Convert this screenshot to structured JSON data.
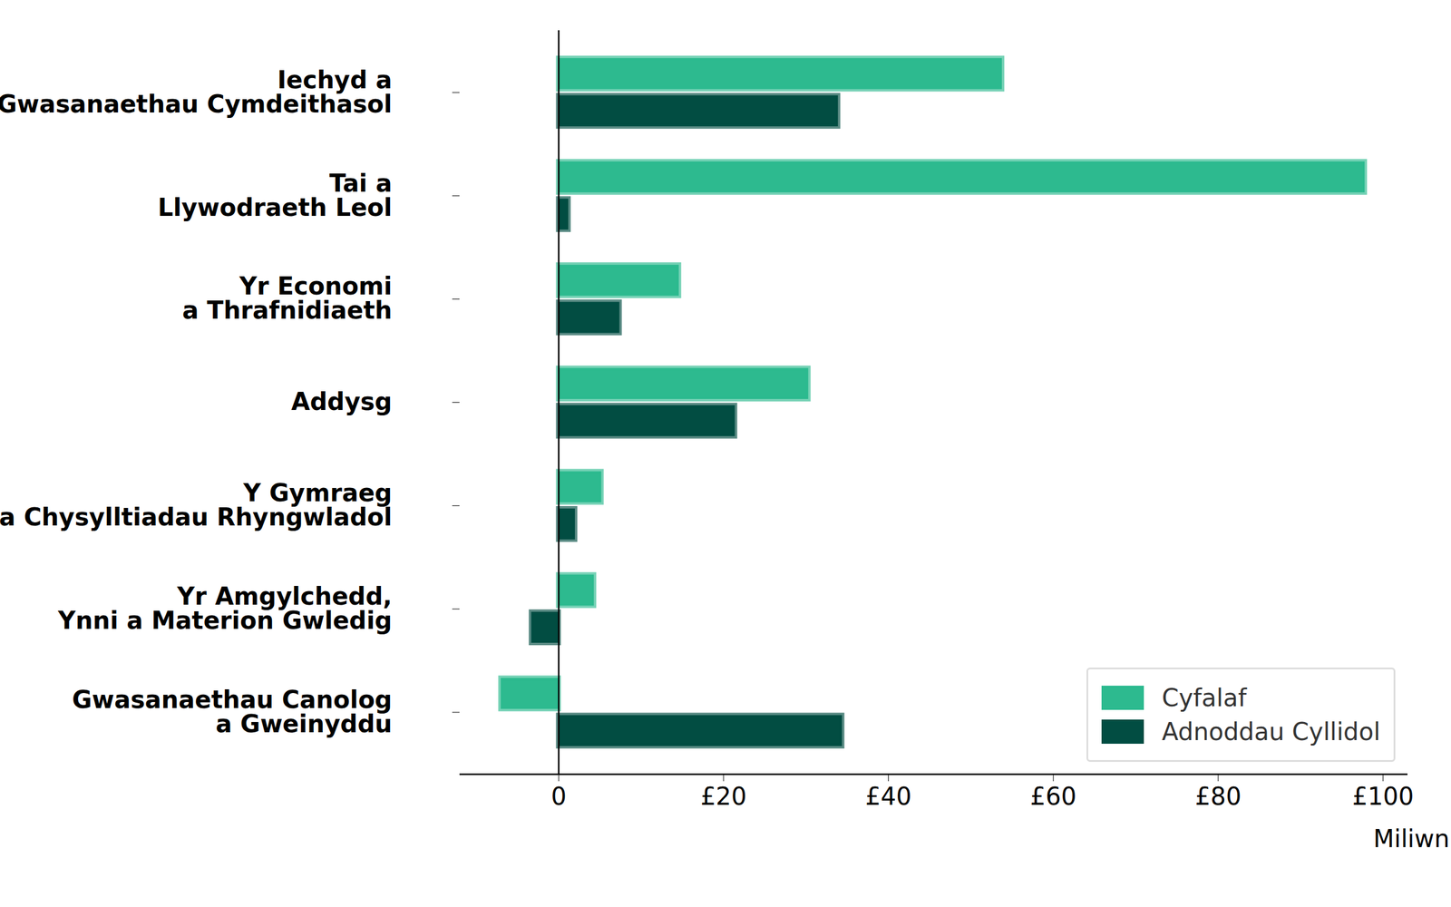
{
  "chart_data": {
    "type": "bar",
    "orientation": "horizontal",
    "categories": [
      "Iechyd a\nGwasanaethau Cymdeithasol",
      "Tai a\nLlywodraeth Leol",
      "Yr Economi\na Thrafnidiaeth",
      "Addysg",
      "Y Gymraeg\na Chysylltiadau Rhyngwladol",
      "Yr Amgylchedd,\nYnni a Materion Gwledig",
      "Gwasanaethau Canolog\na Gweinyddu"
    ],
    "series": [
      {
        "name": "Cyfalaf",
        "color": "#2dba8f",
        "values": [
          53.8,
          97.8,
          14.6,
          30.3,
          5.2,
          4.3,
          -7.0
        ]
      },
      {
        "name": "Adnoddau Cyllidol",
        "color": "#024d42",
        "values": [
          33.9,
          1.2,
          7.4,
          21.4,
          2.0,
          -3.3,
          34.4
        ]
      }
    ],
    "xlim": [
      -12,
      103
    ],
    "xticks": [
      0,
      {
        "value": 20,
        "label": "£20"
      },
      {
        "value": 40,
        "label": "£40"
      },
      {
        "value": 60,
        "label": "£60"
      },
      {
        "value": 80,
        "label": "£80"
      },
      {
        "value": 100,
        "label": "£100"
      }
    ],
    "xlabel": "Miliwn",
    "legend": "lower right",
    "grid": false
  }
}
